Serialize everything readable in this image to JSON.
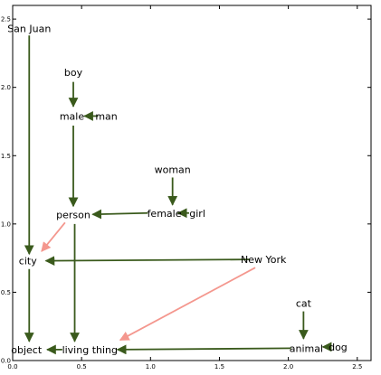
{
  "chart_data": {
    "type": "scatter",
    "title": "",
    "xlabel": "",
    "ylabel": "",
    "xlim": [
      0,
      2.6
    ],
    "ylim": [
      0,
      2.6
    ],
    "xticks": [
      "0.0",
      "0.5",
      "1.0",
      "1.5",
      "2.0",
      "2.5"
    ],
    "yticks": [
      "0.0",
      "0.5",
      "1.0",
      "1.5",
      "2.0",
      "2.5"
    ],
    "grid": false,
    "points": [
      {
        "label": "San Juan",
        "x": 0.12,
        "y": 2.43
      },
      {
        "label": "boy",
        "x": 0.44,
        "y": 2.11
      },
      {
        "label": "male",
        "x": 0.43,
        "y": 1.79
      },
      {
        "label": "man",
        "x": 0.68,
        "y": 1.79
      },
      {
        "label": "woman",
        "x": 1.16,
        "y": 1.4
      },
      {
        "label": "person",
        "x": 0.44,
        "y": 1.07
      },
      {
        "label": "female",
        "x": 1.1,
        "y": 1.08
      },
      {
        "label": "girl",
        "x": 1.34,
        "y": 1.08
      },
      {
        "label": "city",
        "x": 0.11,
        "y": 0.73
      },
      {
        "label": "New York",
        "x": 1.82,
        "y": 0.74
      },
      {
        "label": "cat",
        "x": 2.11,
        "y": 0.42
      },
      {
        "label": "object",
        "x": 0.1,
        "y": 0.08
      },
      {
        "label": "living thing",
        "x": 0.56,
        "y": 0.08
      },
      {
        "label": "animal",
        "x": 2.13,
        "y": 0.09
      },
      {
        "label": "dog",
        "x": 2.36,
        "y": 0.1
      }
    ],
    "arrows": [
      {
        "from": "San Juan",
        "to": "city",
        "color": "#3a5a1c",
        "x1": 0.12,
        "y1": 2.38,
        "x2": 0.12,
        "y2": 0.78
      },
      {
        "from": "boy",
        "to": "male",
        "color": "#3a5a1c",
        "x1": 0.44,
        "y1": 2.04,
        "x2": 0.44,
        "y2": 1.86
      },
      {
        "from": "man",
        "to": "male",
        "color": "#3a5a1c",
        "x1": 0.62,
        "y1": 1.79,
        "x2": 0.52,
        "y2": 1.79
      },
      {
        "from": "male",
        "to": "person",
        "color": "#3a5a1c",
        "x1": 0.44,
        "y1": 1.72,
        "x2": 0.44,
        "y2": 1.13
      },
      {
        "from": "woman",
        "to": "female",
        "color": "#3a5a1c",
        "x1": 1.16,
        "y1": 1.34,
        "x2": 1.16,
        "y2": 1.14
      },
      {
        "from": "girl",
        "to": "female",
        "color": "#3a5a1c",
        "x1": 1.28,
        "y1": 1.08,
        "x2": 1.2,
        "y2": 1.08
      },
      {
        "from": "female",
        "to": "person",
        "color": "#3a5a1c",
        "x1": 0.98,
        "y1": 1.08,
        "x2": 0.58,
        "y2": 1.07
      },
      {
        "from": "person",
        "to": "city",
        "color": "#f4978e",
        "x1": 0.38,
        "y1": 1.01,
        "x2": 0.21,
        "y2": 0.8
      },
      {
        "from": "New York",
        "to": "city",
        "color": "#3a5a1c",
        "x1": 1.72,
        "y1": 0.74,
        "x2": 0.24,
        "y2": 0.73
      },
      {
        "from": "city",
        "to": "object",
        "color": "#3a5a1c",
        "x1": 0.12,
        "y1": 0.67,
        "x2": 0.12,
        "y2": 0.14
      },
      {
        "from": "person",
        "to": "living thing",
        "color": "#3a5a1c",
        "x1": 0.45,
        "y1": 1.0,
        "x2": 0.45,
        "y2": 0.14
      },
      {
        "from": "New York",
        "to": "living thing",
        "color": "#f4978e",
        "x1": 1.76,
        "y1": 0.68,
        "x2": 0.78,
        "y2": 0.15
      },
      {
        "from": "living thing",
        "to": "object",
        "color": "#3a5a1c",
        "x1": 0.36,
        "y1": 0.08,
        "x2": 0.25,
        "y2": 0.08
      },
      {
        "from": "cat",
        "to": "animal",
        "color": "#3a5a1c",
        "x1": 2.11,
        "y1": 0.36,
        "x2": 2.11,
        "y2": 0.16
      },
      {
        "from": "dog",
        "to": "animal",
        "color": "#3a5a1c",
        "x1": 2.3,
        "y1": 0.1,
        "x2": 2.25,
        "y2": 0.1
      },
      {
        "from": "animal",
        "to": "living thing",
        "color": "#3a5a1c",
        "x1": 2.02,
        "y1": 0.09,
        "x2": 0.76,
        "y2": 0.08
      }
    ]
  }
}
